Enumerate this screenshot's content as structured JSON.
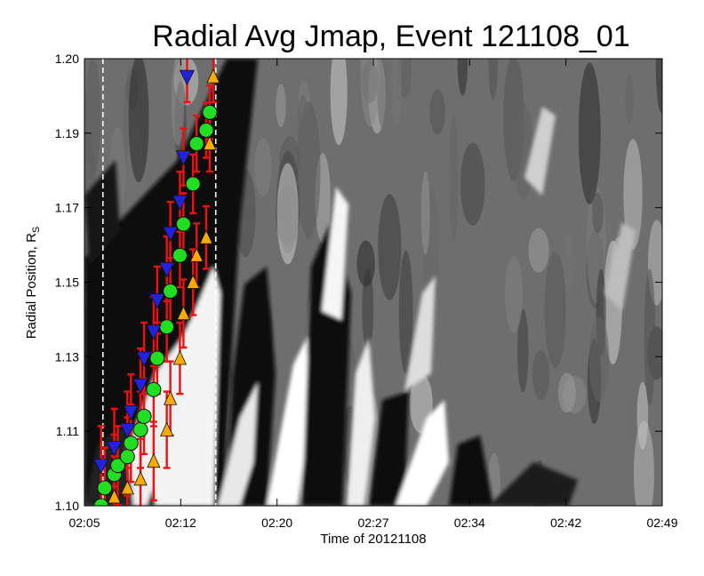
{
  "chart_data": {
    "type": "scatter",
    "title": "Radial Avg Jmap, Event 121108_01",
    "xlabel": "Time of 20121108",
    "ylabel": "Radial Position, R",
    "ylabel_sub": "S",
    "x_ticks": [
      "02:05",
      "02:12",
      "02:20",
      "02:27",
      "02:34",
      "02:42",
      "02:49"
    ],
    "y_ticks": [
      "1.10",
      "1.11",
      "1.13",
      "1.15",
      "1.17",
      "1.19",
      "1.20"
    ],
    "xlim": [
      "02:05",
      "02:49"
    ],
    "ylim": [
      1.1,
      1.2
    ],
    "vertical_markers": [
      "02:06",
      "02:15"
    ],
    "series": [
      {
        "marker": "green-circle",
        "color": "#22dd22",
        "points": [
          {
            "t": "02:06",
            "r": 1.1
          },
          {
            "t": "02:06",
            "r": 1.104
          },
          {
            "t": "02:07",
            "r": 1.107
          },
          {
            "t": "02:07",
            "r": 1.109
          },
          {
            "t": "02:08",
            "r": 1.111
          },
          {
            "t": "02:08",
            "r": 1.114
          },
          {
            "t": "02:09",
            "r": 1.117
          },
          {
            "t": "02:09",
            "r": 1.12
          },
          {
            "t": "02:10",
            "r": 1.126
          },
          {
            "t": "02:10",
            "r": 1.133
          },
          {
            "t": "02:11",
            "r": 1.14
          },
          {
            "t": "02:11",
            "r": 1.148
          },
          {
            "t": "02:12",
            "r": 1.156
          },
          {
            "t": "02:12",
            "r": 1.163
          },
          {
            "t": "02:13",
            "r": 1.172
          },
          {
            "t": "02:13",
            "r": 1.181
          },
          {
            "t": "02:14",
            "r": 1.184
          },
          {
            "t": "02:14",
            "r": 1.188
          }
        ]
      },
      {
        "marker": "blue-triangle-down",
        "color": "#2222dd",
        "points": [
          {
            "t": "02:06",
            "r": 1.109
          },
          {
            "t": "02:07",
            "r": 1.113
          },
          {
            "t": "02:08",
            "r": 1.117
          },
          {
            "t": "02:08",
            "r": 1.121
          },
          {
            "t": "02:09",
            "r": 1.127
          },
          {
            "t": "02:09",
            "r": 1.133
          },
          {
            "t": "02:10",
            "r": 1.139
          },
          {
            "t": "02:10",
            "r": 1.146
          },
          {
            "t": "02:11",
            "r": 1.153
          },
          {
            "t": "02:11",
            "r": 1.161
          },
          {
            "t": "02:12",
            "r": 1.168
          },
          {
            "t": "02:12",
            "r": 1.178
          },
          {
            "t": "02:12",
            "r": 1.196
          }
        ]
      },
      {
        "marker": "orange-triangle-up",
        "color": "#ffaa00",
        "points": [
          {
            "t": "02:07",
            "r": 1.102
          },
          {
            "t": "02:08",
            "r": 1.104
          },
          {
            "t": "02:09",
            "r": 1.106
          },
          {
            "t": "02:10",
            "r": 1.11
          },
          {
            "t": "02:11",
            "r": 1.117
          },
          {
            "t": "02:11",
            "r": 1.124
          },
          {
            "t": "02:12",
            "r": 1.133
          },
          {
            "t": "02:12",
            "r": 1.143
          },
          {
            "t": "02:13",
            "r": 1.15
          },
          {
            "t": "02:13",
            "r": 1.156
          },
          {
            "t": "02:14",
            "r": 1.16
          },
          {
            "t": "02:14",
            "r": 1.181
          },
          {
            "t": "02:14",
            "r": 1.196
          }
        ]
      }
    ],
    "error_bar_color": "#ee1111",
    "grid": false,
    "background": "grayscale jmap image"
  }
}
